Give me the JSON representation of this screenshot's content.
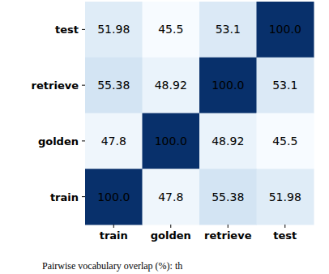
{
  "chart_data": {
    "type": "heatmap",
    "annotations": [
      "Pairwise vocabulary overlap (%): th"
    ],
    "x_categories": [
      "train",
      "golden",
      "retrieve",
      "test"
    ],
    "y_categories": [
      "test",
      "retrieve",
      "golden",
      "train"
    ],
    "cells": [
      [
        51.98,
        45.5,
        53.1,
        100
      ],
      [
        55.38,
        48.92,
        100,
        53.1
      ],
      [
        47.8,
        100,
        48.92,
        45.5
      ],
      [
        100,
        47.8,
        55.38,
        51.98
      ]
    ],
    "value_labels": [
      [
        "51.98",
        "45.5",
        "53.1",
        "100.0"
      ],
      [
        "55.38",
        "48.92",
        "100.0",
        "53.1"
      ],
      [
        "47.8",
        "100.0",
        "48.92",
        "45.5"
      ],
      [
        "100.0",
        "47.8",
        "55.38",
        "51.98"
      ]
    ],
    "color": "Blues",
    "color_range": [
      45.5,
      100
    ],
    "data_labels": true
  }
}
